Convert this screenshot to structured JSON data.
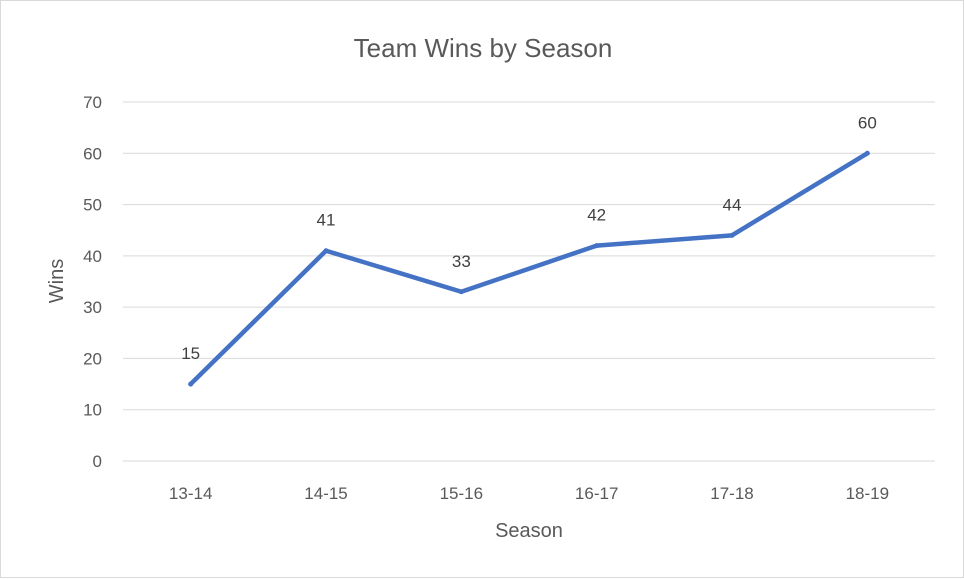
{
  "chart_data": {
    "type": "line",
    "title": "Team Wins by Season",
    "xlabel": "Season",
    "ylabel": "Wins",
    "categories": [
      "13-14",
      "14-15",
      "15-16",
      "16-17",
      "17-18",
      "18-19"
    ],
    "series": [
      {
        "values": [
          15,
          41,
          33,
          42,
          44,
          60
        ]
      }
    ],
    "ylim": [
      0,
      70
    ],
    "yticks": [
      0,
      10,
      20,
      30,
      40,
      50,
      60,
      70
    ],
    "grid": true,
    "legend": "none",
    "data_labels": true
  },
  "colors": {
    "series": "#4472c4"
  }
}
